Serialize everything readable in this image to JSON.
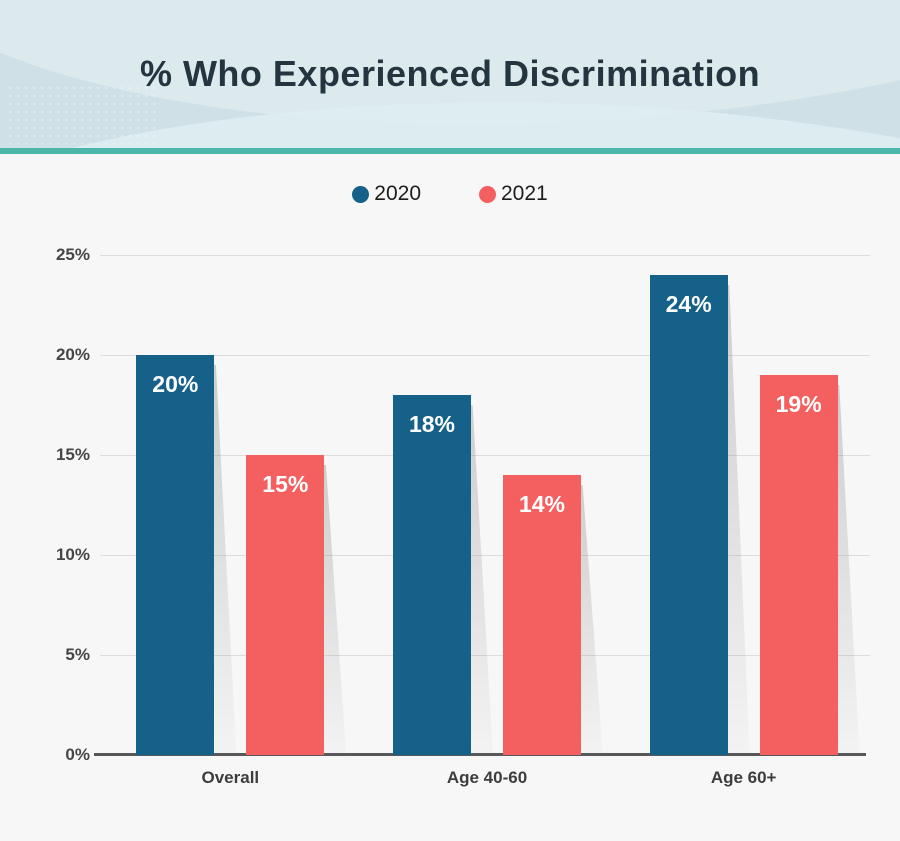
{
  "header": {
    "title": "% Who Experienced Discrimination"
  },
  "chart_data": {
    "type": "bar",
    "title": "% Who Experienced Discrimination",
    "categories": [
      "Overall",
      "Age 40-60",
      "Age 60+"
    ],
    "series": [
      {
        "name": "2020",
        "color": "#16618a",
        "values": [
          20,
          18,
          24
        ],
        "labels": [
          "20%",
          "18%",
          "24%"
        ]
      },
      {
        "name": "2021",
        "color": "#f4605f",
        "values": [
          15,
          14,
          19
        ],
        "labels": [
          "15%",
          "14%",
          "19%"
        ]
      }
    ],
    "y_ticks": [
      {
        "value": 0,
        "label": "0%"
      },
      {
        "value": 5,
        "label": "5%"
      },
      {
        "value": 10,
        "label": "10%"
      },
      {
        "value": 15,
        "label": "15%"
      },
      {
        "value": 20,
        "label": "20%"
      },
      {
        "value": 25,
        "label": "25%"
      }
    ],
    "ylim": [
      0,
      25
    ],
    "grid": true,
    "legend_position": "top-center"
  },
  "colors": {
    "header_background": "#cfe1e7",
    "divider_teal": "#4cb6ab",
    "page_background": "#f7f7f8",
    "title_text": "#243540",
    "bar_2020": "#16618a",
    "bar_2021": "#f4605f",
    "bar_value_text": "#ffffff",
    "axis_line": "#57585a",
    "gridline": "#dddddd",
    "tick_text": "#464646"
  }
}
